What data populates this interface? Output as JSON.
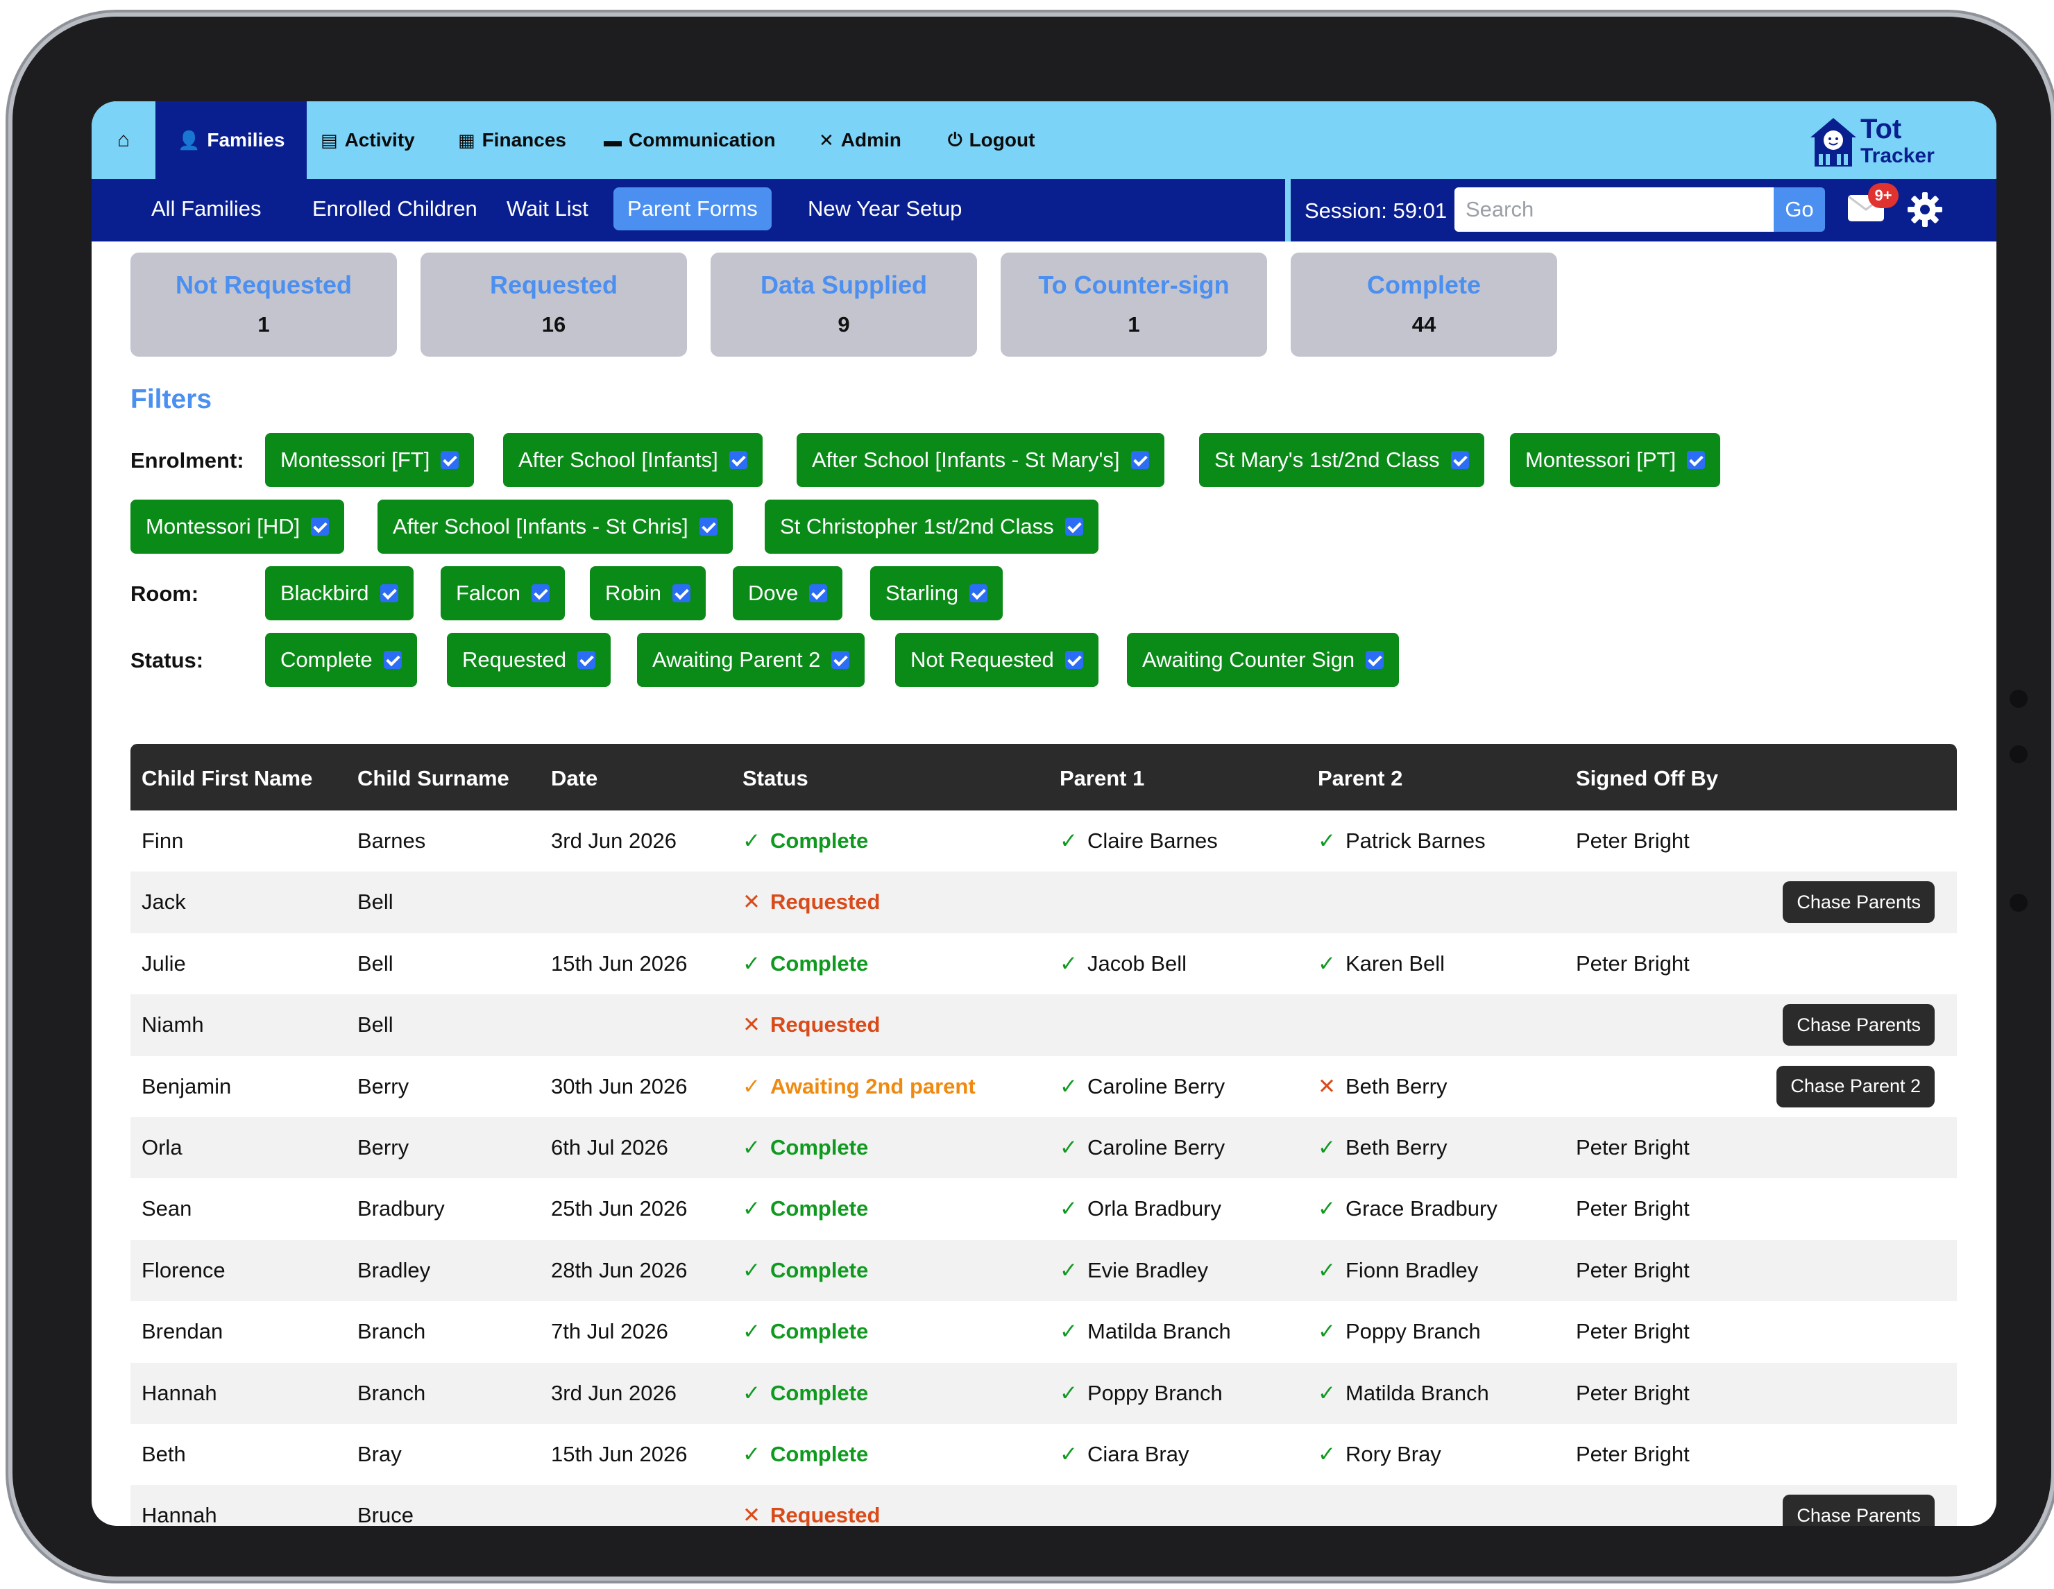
{
  "nav": {
    "tabs": [
      {
        "label": "",
        "icon": "home-icon"
      },
      {
        "label": "Families",
        "icon": "users-icon"
      },
      {
        "label": "Activity",
        "icon": "clipboard-icon"
      },
      {
        "label": "Finances",
        "icon": "finance-icon"
      },
      {
        "label": "Communication",
        "icon": "chat-icon"
      },
      {
        "label": "Admin",
        "icon": "tools-icon"
      },
      {
        "label": "Logout",
        "icon": "power-icon"
      }
    ],
    "logo_line1": "Tot",
    "logo_line2": "Tracker"
  },
  "subnav": {
    "items": [
      "All Families",
      "Enrolled Children",
      "Wait List",
      "Parent Forms",
      "New Year Setup"
    ],
    "session": "Session: 59:01",
    "search_placeholder": "Search",
    "go_label": "Go",
    "badge": "9+"
  },
  "status_cards": [
    {
      "label": "Not Requested",
      "count": "1"
    },
    {
      "label": "Requested",
      "count": "16"
    },
    {
      "label": "Data Supplied",
      "count": "9"
    },
    {
      "label": "To Counter-sign",
      "count": "1"
    },
    {
      "label": "Complete",
      "count": "44"
    }
  ],
  "filters": {
    "title": "Filters",
    "enrolment_label": "Enrolment:",
    "enrolment": [
      "Montessori [FT]",
      "After School [Infants]",
      "After School [Infants - St Mary's]",
      "St Mary's 1st/2nd Class",
      "Montessori [PT]",
      "Montessori [HD]",
      "After School [Infants - St Chris]",
      "St Christopher 1st/2nd Class"
    ],
    "room_label": "Room:",
    "room": [
      "Blackbird",
      "Falcon",
      "Robin",
      "Dove",
      "Starling"
    ],
    "status_label": "Status:",
    "status": [
      "Complete",
      "Requested",
      "Awaiting Parent 2",
      "Not Requested",
      "Awaiting Counter Sign"
    ]
  },
  "table": {
    "headers": [
      "Child First Name",
      "Child Surname",
      "Date",
      "Status",
      "Parent 1",
      "Parent 2",
      "Signed Off By"
    ],
    "rows": [
      {
        "first": "Finn",
        "surname": "Barnes",
        "date": "3rd Jun 2026",
        "status": "Complete",
        "status_type": "ok",
        "p1": "Claire Barnes",
        "p1_mark": "ok",
        "p2": "Patrick Barnes",
        "p2_mark": "ok",
        "signed": "Peter Bright",
        "action": ""
      },
      {
        "first": "Jack",
        "surname": "Bell",
        "date": "",
        "status": "Requested",
        "status_type": "req",
        "p1": "",
        "p1_mark": "",
        "p2": "",
        "p2_mark": "",
        "signed": "",
        "action": "Chase Parents"
      },
      {
        "first": "Julie",
        "surname": "Bell",
        "date": "15th Jun 2026",
        "status": "Complete",
        "status_type": "ok",
        "p1": "Jacob Bell",
        "p1_mark": "ok",
        "p2": "Karen Bell",
        "p2_mark": "ok",
        "signed": "Peter Bright",
        "action": ""
      },
      {
        "first": "Niamh",
        "surname": "Bell",
        "date": "",
        "status": "Requested",
        "status_type": "req",
        "p1": "",
        "p1_mark": "",
        "p2": "",
        "p2_mark": "",
        "signed": "",
        "action": "Chase Parents"
      },
      {
        "first": "Benjamin",
        "surname": "Berry",
        "date": "30th Jun 2026",
        "status": "Awaiting 2nd parent",
        "status_type": "await",
        "p1": "Caroline Berry",
        "p1_mark": "ok",
        "p2": "Beth Berry",
        "p2_mark": "x",
        "signed": "",
        "action": "Chase Parent 2"
      },
      {
        "first": "Orla",
        "surname": "Berry",
        "date": "6th Jul 2026",
        "status": "Complete",
        "status_type": "ok",
        "p1": "Caroline Berry",
        "p1_mark": "ok",
        "p2": "Beth Berry",
        "p2_mark": "ok",
        "signed": "Peter Bright",
        "action": ""
      },
      {
        "first": "Sean",
        "surname": "Bradbury",
        "date": "25th Jun 2026",
        "status": "Complete",
        "status_type": "ok",
        "p1": "Orla Bradbury",
        "p1_mark": "ok",
        "p2": "Grace Bradbury",
        "p2_mark": "ok",
        "signed": "Peter Bright",
        "action": ""
      },
      {
        "first": "Florence",
        "surname": "Bradley",
        "date": "28th Jun 2026",
        "status": "Complete",
        "status_type": "ok",
        "p1": "Evie Bradley",
        "p1_mark": "ok",
        "p2": "Fionn Bradley",
        "p2_mark": "ok",
        "signed": "Peter Bright",
        "action": ""
      },
      {
        "first": "Brendan",
        "surname": "Branch",
        "date": "7th Jul 2026",
        "status": "Complete",
        "status_type": "ok",
        "p1": "Matilda Branch",
        "p1_mark": "ok",
        "p2": "Poppy Branch",
        "p2_mark": "ok",
        "signed": "Peter Bright",
        "action": ""
      },
      {
        "first": "Hannah",
        "surname": "Branch",
        "date": "3rd Jun 2026",
        "status": "Complete",
        "status_type": "ok",
        "p1": "Poppy Branch",
        "p1_mark": "ok",
        "p2": "Matilda Branch",
        "p2_mark": "ok",
        "signed": "Peter Bright",
        "action": ""
      },
      {
        "first": "Beth",
        "surname": "Bray",
        "date": "15th Jun 2026",
        "status": "Complete",
        "status_type": "ok",
        "p1": "Ciara Bray",
        "p1_mark": "ok",
        "p2": "Rory Bray",
        "p2_mark": "ok",
        "signed": "Peter Bright",
        "action": ""
      },
      {
        "first": "Hannah",
        "surname": "Bruce",
        "date": "",
        "status": "Requested",
        "status_type": "req",
        "p1": "",
        "p1_mark": "",
        "p2": "",
        "p2_mark": "",
        "signed": "",
        "action": "Chase Parents"
      }
    ]
  },
  "colors": {
    "topnav": "#7bd3f7",
    "subnav": "#0a1f8f",
    "accent": "#4b8ff0",
    "chip": "#0a8a17",
    "complete": "#0f9a1f",
    "requested": "#d94b1a",
    "awaiting": "#ef8a10"
  }
}
